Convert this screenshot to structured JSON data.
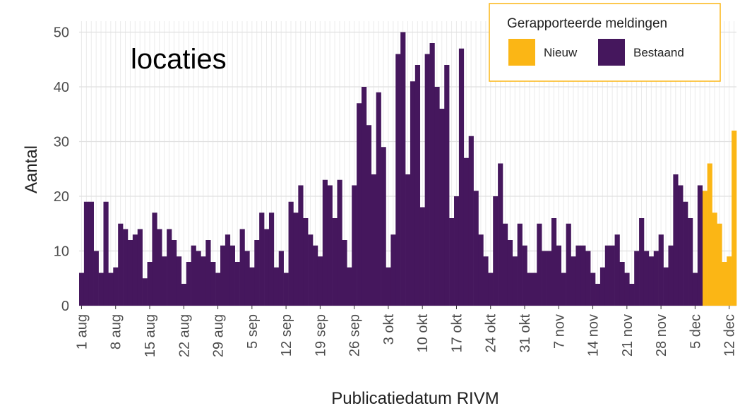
{
  "chart_data": {
    "type": "bar",
    "annotation": "locaties",
    "x_label": "Publicatiedatum RIVM",
    "y_label": "Aantal",
    "legend_title": "Gerapporteerde meldingen",
    "legend_position": "top-right",
    "grid": true,
    "ylim": [
      0,
      52
    ],
    "yticks": [
      0,
      10,
      20,
      30,
      40,
      50
    ],
    "categories": [
      "1 aug",
      null,
      null,
      null,
      null,
      null,
      null,
      "8 aug",
      null,
      null,
      null,
      null,
      null,
      null,
      "15 aug",
      null,
      null,
      null,
      null,
      null,
      null,
      "22 aug",
      null,
      null,
      null,
      null,
      null,
      null,
      "29 aug",
      null,
      null,
      null,
      null,
      null,
      null,
      "5 sep",
      null,
      null,
      null,
      null,
      null,
      null,
      "12 sep",
      null,
      null,
      null,
      null,
      null,
      null,
      "19 sep",
      null,
      null,
      null,
      null,
      null,
      null,
      "26 sep",
      null,
      null,
      null,
      null,
      null,
      null,
      "3 okt",
      null,
      null,
      null,
      null,
      null,
      null,
      "10 okt",
      null,
      null,
      null,
      null,
      null,
      null,
      "17 okt",
      null,
      null,
      null,
      null,
      null,
      null,
      "24 okt",
      null,
      null,
      null,
      null,
      null,
      null,
      "31 okt",
      null,
      null,
      null,
      null,
      null,
      null,
      "7 nov",
      null,
      null,
      null,
      null,
      null,
      null,
      "14 nov",
      null,
      null,
      null,
      null,
      null,
      null,
      "21 nov",
      null,
      null,
      null,
      null,
      null,
      null,
      "28 nov",
      null,
      null,
      null,
      null,
      null,
      null,
      "5 dec",
      null,
      null,
      null,
      null,
      null,
      null,
      "12 dec",
      null
    ],
    "series": [
      {
        "name": "Nieuw",
        "color": "#fbb615",
        "values": [
          null,
          null,
          null,
          null,
          null,
          null,
          null,
          null,
          null,
          null,
          null,
          null,
          null,
          null,
          null,
          null,
          null,
          null,
          null,
          null,
          null,
          null,
          null,
          null,
          null,
          null,
          null,
          null,
          null,
          null,
          null,
          null,
          null,
          null,
          null,
          null,
          null,
          null,
          null,
          null,
          null,
          null,
          null,
          null,
          null,
          null,
          null,
          null,
          null,
          null,
          null,
          null,
          null,
          null,
          null,
          null,
          null,
          null,
          null,
          null,
          null,
          null,
          null,
          null,
          null,
          null,
          null,
          null,
          null,
          null,
          null,
          null,
          null,
          null,
          null,
          null,
          null,
          null,
          null,
          null,
          null,
          null,
          null,
          null,
          null,
          null,
          null,
          null,
          null,
          null,
          null,
          null,
          null,
          null,
          null,
          null,
          null,
          null,
          null,
          null,
          null,
          null,
          null,
          null,
          null,
          null,
          null,
          null,
          null,
          null,
          null,
          null,
          null,
          null,
          null,
          null,
          null,
          null,
          null,
          null,
          null,
          null,
          null,
          null,
          null,
          null,
          null,
          null,
          21,
          26,
          17,
          15,
          8,
          9,
          32
        ]
      },
      {
        "name": "Bestaand",
        "color": "#45175d",
        "values": [
          6,
          19,
          19,
          10,
          6,
          19,
          6,
          7,
          15,
          14,
          12,
          13,
          14,
          5,
          8,
          17,
          14,
          9,
          14,
          12,
          9,
          4,
          8,
          11,
          10,
          9,
          12,
          8,
          6,
          11,
          13,
          11,
          8,
          14,
          10,
          7,
          12,
          17,
          14,
          17,
          7,
          10,
          6,
          19,
          17,
          22,
          16,
          13,
          11,
          9,
          23,
          22,
          16,
          23,
          12,
          7,
          22,
          37,
          40,
          33,
          24,
          39,
          29,
          7,
          13,
          46,
          50,
          24,
          41,
          44,
          18,
          46,
          48,
          40,
          36,
          44,
          16,
          20,
          47,
          27,
          31,
          21,
          13,
          9,
          6,
          20,
          26,
          15,
          12,
          9,
          15,
          11,
          6,
          6,
          15,
          10,
          10,
          16,
          11,
          6,
          15,
          9,
          11,
          11,
          10,
          6,
          4,
          7,
          11,
          11,
          13,
          8,
          6,
          4,
          10,
          16,
          10,
          9,
          10,
          13,
          7,
          11,
          24,
          22,
          19,
          16,
          6,
          22,
          null,
          null,
          null,
          null,
          null,
          null,
          null
        ]
      }
    ]
  }
}
